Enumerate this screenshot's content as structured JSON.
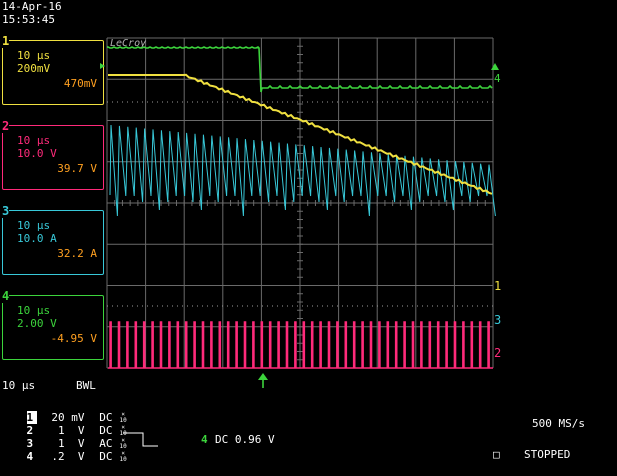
{
  "header": {
    "date": "14-Apr-16",
    "time": "15:53:45"
  },
  "brand": "LeCroy",
  "colors": {
    "ch1": "#f0e040",
    "ch2": "#ff2a7a",
    "ch3": "#38c8d8",
    "ch4": "#3cd43c",
    "value": "#ffa020",
    "grid": "#6a6a6a"
  },
  "channels": [
    {
      "num": "1",
      "timebase": "10 µs",
      "vdiv": "200mV",
      "value": "470mV"
    },
    {
      "num": "2",
      "timebase": "10 µs",
      "vdiv": "10.0 V",
      "value": "39.7 V"
    },
    {
      "num": "3",
      "timebase": "10 µs",
      "vdiv": "10.0 A",
      "value": "32.2 A"
    },
    {
      "num": "4",
      "timebase": "10 µs",
      "vdiv": "2.00 V",
      "value": "-4.95 V"
    }
  ],
  "bottom": {
    "timebase": "10 µs",
    "bwl": "BWL",
    "rows": [
      {
        "num": "1",
        "scale": "20 mV",
        "coupling": "DC"
      },
      {
        "num": "2",
        "scale": "1  V",
        "coupling": "DC"
      },
      {
        "num": "3",
        "scale": "1  V",
        "coupling": "AC"
      },
      {
        "num": "4",
        "scale": ".2  V",
        "coupling": "DC"
      }
    ],
    "frac_top": "×",
    "frac_bottom": "10",
    "trigger_channel": "4",
    "trigger_text": "DC 0.96 V",
    "sample_rate": "500 MS/s",
    "status": "STOPPED",
    "status_box": "□"
  }
}
